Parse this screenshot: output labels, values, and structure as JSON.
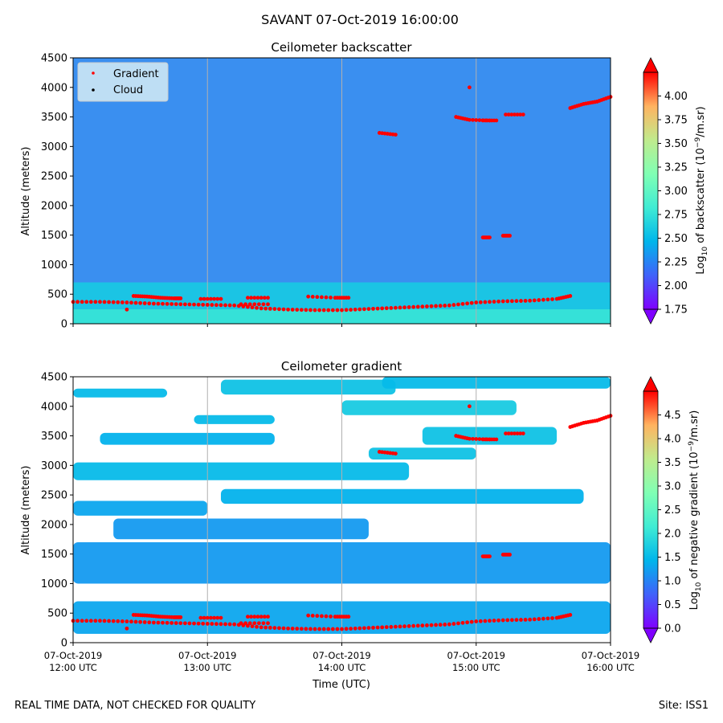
{
  "page": {
    "suptitle": "SAVANT 07-Oct-2019 16:00:00",
    "footer_left": "REAL TIME DATA, NOT CHECKED FOR QUALITY",
    "footer_right": "Site: ISS1"
  },
  "colors": {
    "gradient_marker": "#ff0000",
    "cloud_marker": "#000000",
    "vline": "#b0b0b0",
    "cmap": [
      "#7f00ff",
      "#4062fa",
      "#00b5eb",
      "#40ecd4",
      "#80ffb4",
      "#c0eb8d",
      "#ffb360",
      "#ff0000"
    ]
  },
  "chart_data": [
    {
      "type": "heatmap",
      "title": "Ceilometer backscatter",
      "xlabel": "",
      "ylabel": "Altitude (meters)",
      "xlim": [
        12.0,
        16.0
      ],
      "ylim": [
        0,
        4500
      ],
      "yticks": [
        0,
        500,
        1000,
        1500,
        2000,
        2500,
        3000,
        3500,
        4000,
        4500
      ],
      "xticks": [
        12,
        13,
        14,
        15,
        16
      ],
      "show_xticklabels": false,
      "legend": {
        "position": "top-left",
        "entries": [
          "Gradient",
          "Cloud"
        ]
      },
      "colorbar": {
        "label_prefix": "Log",
        "label_sub": "10",
        "label_mid": " of backscatter (10",
        "label_sup": "−9",
        "label_suffix": "/m.sr)",
        "min": 1.75,
        "max": 4.25,
        "ticks": [
          "1.75",
          "2.00",
          "2.25",
          "2.50",
          "2.75",
          "3.00",
          "3.25",
          "3.50",
          "3.75",
          "4.00"
        ]
      },
      "field": {
        "base": 2.1,
        "near_surface": 2.6,
        "surface_depth": 700
      },
      "series": [
        {
          "name": "Gradient",
          "points": [
            [
              12.0,
              370
            ],
            [
              12.2,
              370
            ],
            [
              12.4,
              360
            ],
            [
              12.6,
              340
            ],
            [
              12.8,
              330
            ],
            [
              13.0,
              320
            ],
            [
              13.2,
              310
            ],
            [
              13.4,
              260
            ],
            [
              13.6,
              240
            ],
            [
              13.8,
              230
            ],
            [
              14.0,
              230
            ],
            [
              14.2,
              250
            ],
            [
              14.4,
              270
            ],
            [
              14.6,
              290
            ],
            [
              14.8,
              310
            ],
            [
              15.0,
              360
            ],
            [
              15.2,
              380
            ],
            [
              15.4,
              390
            ],
            [
              15.6,
              420
            ],
            [
              15.7,
              470
            ]
          ]
        },
        {
          "name": "Gradient",
          "points": [
            [
              12.45,
              470
            ],
            [
              12.55,
              460
            ],
            [
              12.65,
              440
            ],
            [
              12.75,
              430
            ],
            [
              12.8,
              430
            ]
          ]
        },
        {
          "name": "Gradient",
          "points": [
            [
              12.95,
              420
            ],
            [
              13.1,
              420
            ]
          ]
        },
        {
          "name": "Gradient",
          "points": [
            [
              13.3,
              440
            ],
            [
              13.45,
              440
            ]
          ]
        },
        {
          "name": "Gradient",
          "points": [
            [
              13.75,
              460
            ],
            [
              13.95,
              440
            ],
            [
              14.05,
              440
            ]
          ]
        },
        {
          "name": "Gradient",
          "points": [
            [
              13.25,
              330
            ],
            [
              13.45,
              330
            ]
          ]
        },
        {
          "name": "Gradient",
          "points": [
            [
              14.28,
              3230
            ],
            [
              14.4,
              3200
            ]
          ]
        },
        {
          "name": "Gradient",
          "points": [
            [
              14.85,
              3500
            ],
            [
              14.95,
              3450
            ],
            [
              15.1,
              3440
            ]
          ]
        },
        {
          "name": "Gradient",
          "points": [
            [
              15.05,
              3440
            ],
            [
              15.15,
              3440
            ]
          ]
        },
        {
          "name": "Gradient",
          "points": [
            [
              15.22,
              3540
            ],
            [
              15.35,
              3540
            ]
          ]
        },
        {
          "name": "Gradient",
          "points": [
            [
              14.95,
              4000
            ]
          ]
        },
        {
          "name": "Gradient",
          "points": [
            [
              15.05,
              1460
            ],
            [
              15.1,
              1460
            ]
          ]
        },
        {
          "name": "Gradient",
          "points": [
            [
              15.2,
              1490
            ],
            [
              15.25,
              1490
            ]
          ]
        },
        {
          "name": "Gradient",
          "points": [
            [
              15.7,
              3650
            ],
            [
              15.8,
              3720
            ],
            [
              15.9,
              3760
            ],
            [
              16.0,
              3840
            ]
          ]
        },
        {
          "name": "Gradient",
          "points": [
            [
              12.4,
              240
            ]
          ]
        }
      ]
    },
    {
      "type": "heatmap",
      "title": "Ceilometer gradient",
      "xlabel": "Time (UTC)",
      "ylabel": "Altitude (meters)",
      "xlim": [
        12.0,
        16.0
      ],
      "ylim": [
        0,
        4500
      ],
      "yticks": [
        0,
        500,
        1000,
        1500,
        2000,
        2500,
        3000,
        3500,
        4000,
        4500
      ],
      "xticks": [
        12,
        13,
        14,
        15,
        16
      ],
      "xticklabels": [
        [
          "07-Oct-2019",
          "12:00 UTC"
        ],
        [
          "07-Oct-2019",
          "13:00 UTC"
        ],
        [
          "07-Oct-2019",
          "14:00 UTC"
        ],
        [
          "07-Oct-2019",
          "15:00 UTC"
        ],
        [
          "07-Oct-2019",
          "16:00 UTC"
        ]
      ],
      "colorbar": {
        "label_prefix": "Log",
        "label_sub": "10",
        "label_mid": " of negative gradient (10",
        "label_sup": "−9",
        "label_suffix": "/m.sr)",
        "min": 0.0,
        "max": 5.0,
        "ticks": [
          "0.0",
          "0.5",
          "1.0",
          "1.5",
          "2.0",
          "2.5",
          "3.0",
          "3.5",
          "4.0",
          "4.5"
        ]
      },
      "bands": [
        {
          "x0": 12.0,
          "x1": 16.0,
          "y0": 150,
          "y1": 700,
          "value": 1.3
        },
        {
          "x0": 12.0,
          "x1": 16.0,
          "y0": 1000,
          "y1": 1700,
          "value": 1.2
        },
        {
          "x0": 12.3,
          "x1": 14.2,
          "y0": 1750,
          "y1": 2100,
          "value": 1.2
        },
        {
          "x0": 12.0,
          "x1": 13.0,
          "y0": 2150,
          "y1": 2400,
          "value": 1.3
        },
        {
          "x0": 13.1,
          "x1": 15.8,
          "y0": 2350,
          "y1": 2600,
          "value": 1.4
        },
        {
          "x0": 12.0,
          "x1": 14.5,
          "y0": 2750,
          "y1": 3050,
          "value": 1.5
        },
        {
          "x0": 14.2,
          "x1": 15.0,
          "y0": 3100,
          "y1": 3300,
          "value": 1.6
        },
        {
          "x0": 12.2,
          "x1": 13.5,
          "y0": 3350,
          "y1": 3550,
          "value": 1.4
        },
        {
          "x0": 14.6,
          "x1": 15.6,
          "y0": 3350,
          "y1": 3650,
          "value": 1.6
        },
        {
          "x0": 12.9,
          "x1": 13.5,
          "y0": 3700,
          "y1": 3850,
          "value": 1.5
        },
        {
          "x0": 14.0,
          "x1": 15.3,
          "y0": 3850,
          "y1": 4100,
          "value": 1.7
        },
        {
          "x0": 12.0,
          "x1": 12.7,
          "y0": 4150,
          "y1": 4300,
          "value": 1.5
        },
        {
          "x0": 13.1,
          "x1": 14.4,
          "y0": 4200,
          "y1": 4450,
          "value": 1.6
        },
        {
          "x0": 14.3,
          "x1": 16.0,
          "y0": 4300,
          "y1": 4500,
          "value": 1.5
        }
      ],
      "series": [
        {
          "name": "Gradient",
          "points": [
            [
              12.0,
              370
            ],
            [
              12.2,
              370
            ],
            [
              12.4,
              360
            ],
            [
              12.6,
              340
            ],
            [
              12.8,
              330
            ],
            [
              13.0,
              320
            ],
            [
              13.2,
              310
            ],
            [
              13.4,
              260
            ],
            [
              13.6,
              240
            ],
            [
              13.8,
              230
            ],
            [
              14.0,
              230
            ],
            [
              14.2,
              250
            ],
            [
              14.4,
              270
            ],
            [
              14.6,
              290
            ],
            [
              14.8,
              310
            ],
            [
              15.0,
              360
            ],
            [
              15.2,
              380
            ],
            [
              15.4,
              390
            ],
            [
              15.6,
              420
            ],
            [
              15.7,
              470
            ]
          ]
        },
        {
          "name": "Gradient",
          "points": [
            [
              12.45,
              470
            ],
            [
              12.55,
              460
            ],
            [
              12.65,
              440
            ],
            [
              12.75,
              430
            ],
            [
              12.8,
              430
            ]
          ]
        },
        {
          "name": "Gradient",
          "points": [
            [
              12.95,
              420
            ],
            [
              13.1,
              420
            ]
          ]
        },
        {
          "name": "Gradient",
          "points": [
            [
              13.3,
              440
            ],
            [
              13.45,
              440
            ]
          ]
        },
        {
          "name": "Gradient",
          "points": [
            [
              13.75,
              460
            ],
            [
              13.95,
              440
            ],
            [
              14.05,
              440
            ]
          ]
        },
        {
          "name": "Gradient",
          "points": [
            [
              13.25,
              330
            ],
            [
              13.45,
              330
            ]
          ]
        },
        {
          "name": "Gradient",
          "points": [
            [
              14.28,
              3230
            ],
            [
              14.4,
              3200
            ]
          ]
        },
        {
          "name": "Gradient",
          "points": [
            [
              14.85,
              3500
            ],
            [
              14.95,
              3450
            ],
            [
              15.1,
              3440
            ]
          ]
        },
        {
          "name": "Gradient",
          "points": [
            [
              15.05,
              3440
            ],
            [
              15.15,
              3440
            ]
          ]
        },
        {
          "name": "Gradient",
          "points": [
            [
              15.22,
              3540
            ],
            [
              15.35,
              3540
            ]
          ]
        },
        {
          "name": "Gradient",
          "points": [
            [
              14.95,
              4000
            ]
          ]
        },
        {
          "name": "Gradient",
          "points": [
            [
              15.05,
              1460
            ],
            [
              15.1,
              1460
            ]
          ]
        },
        {
          "name": "Gradient",
          "points": [
            [
              15.2,
              1490
            ],
            [
              15.25,
              1490
            ]
          ]
        },
        {
          "name": "Gradient",
          "points": [
            [
              15.7,
              3650
            ],
            [
              15.8,
              3720
            ],
            [
              15.9,
              3760
            ],
            [
              16.0,
              3840
            ]
          ]
        },
        {
          "name": "Gradient",
          "points": [
            [
              12.4,
              240
            ]
          ]
        }
      ]
    }
  ]
}
